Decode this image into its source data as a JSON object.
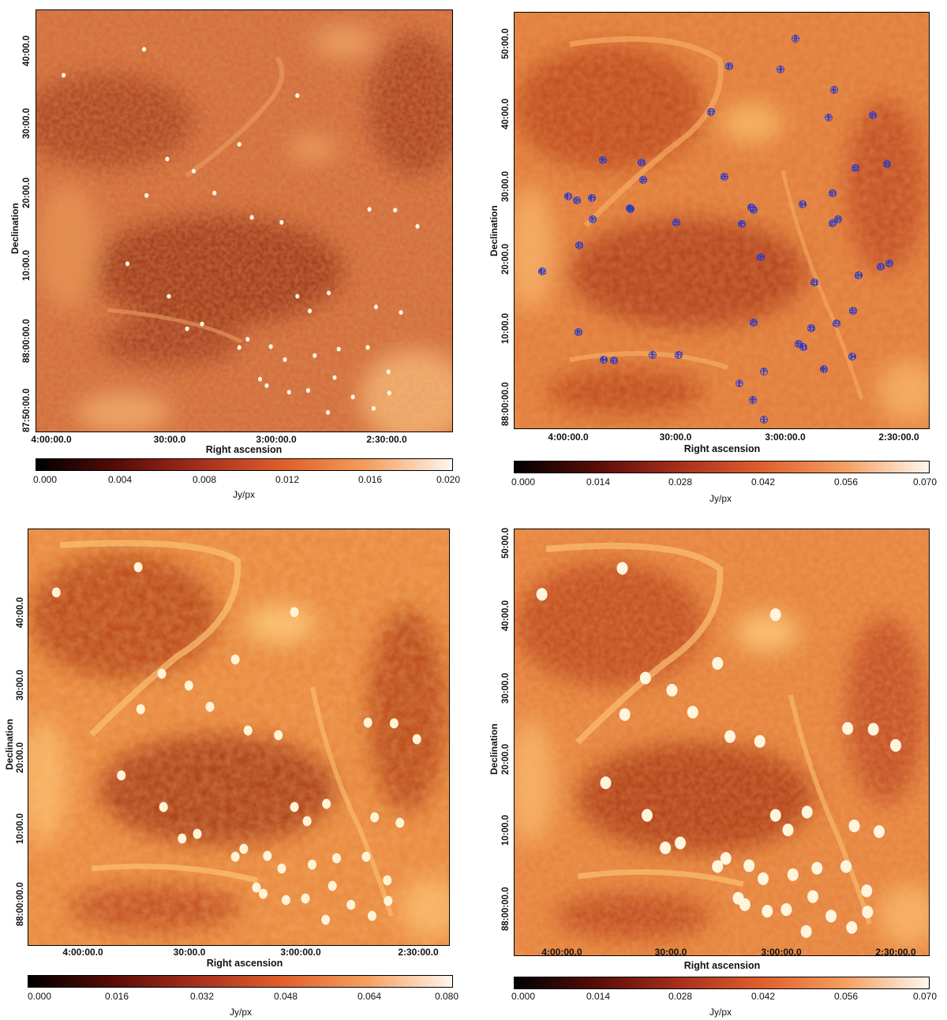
{
  "colorbar_unit": "Jy/px",
  "axis_labels": {
    "x": "Right ascension",
    "y": "Declination"
  },
  "colormap": {
    "stops": [
      "#000000",
      "#5a0c08",
      "#a8301c",
      "#e0602c",
      "#f5a060",
      "#fff6ee"
    ]
  },
  "panels": [
    {
      "id": "top-left",
      "yticks": [
        "40:00.0",
        "30:00.0",
        "20:00.0",
        "10:00.0",
        "88:00:00.0",
        "87:50:00.0"
      ],
      "xticks": [
        "4:00:00.0",
        "30:00.0",
        "3:00:00.0",
        "2:30:00.0"
      ],
      "cbar_ticks": [
        "0.000",
        "0.004",
        "0.008",
        "0.012",
        "0.016",
        "0.020"
      ]
    },
    {
      "id": "top-right",
      "yticks": [
        "50:00.0",
        "40:00.0",
        "30:00.0",
        "20:00.0",
        "10:00.0",
        "88:00:00.0"
      ],
      "xticks": [
        "4:00:00.0",
        "30:00.0",
        "3:00:00.0",
        "2:30:00.0"
      ],
      "cbar_ticks": [
        "0.000",
        "0.014",
        "0.028",
        "0.042",
        "0.056",
        "0.070"
      ],
      "source_labels": [
        "43",
        "16",
        "42",
        "38",
        "33",
        "44",
        "63",
        "36",
        "49",
        "39",
        "30",
        "40",
        "5",
        "61",
        "18",
        "37",
        "20",
        "17",
        "35",
        "26",
        "47",
        "45",
        "28",
        "29",
        "7",
        "62",
        "1",
        "2",
        "8",
        "3",
        "4",
        "6",
        "9",
        "10",
        "11",
        "12",
        "13",
        "14",
        "15",
        "19",
        "21",
        "22",
        "23",
        "24",
        "25",
        "27",
        "31",
        "32",
        "34",
        "41",
        "46"
      ]
    },
    {
      "id": "bottom-left",
      "yticks": [
        "40:00.0",
        "30:00.0",
        "20:00.0",
        "10:00.0",
        "88:00:00.0"
      ],
      "xticks": [
        "4:00:00.0",
        "30:00.0",
        "3:00:00.0",
        "2:30:00.0"
      ],
      "cbar_ticks": [
        "0.000",
        "0.016",
        "0.032",
        "0.048",
        "0.064",
        "0.080"
      ]
    },
    {
      "id": "bottom-right",
      "yticks": [
        "50:00.0",
        "40:00.0",
        "30:00.0",
        "20:00.0",
        "10:00.0",
        "88:00:00.0"
      ],
      "xticks": [
        "4:00:00.0",
        "30:00.0",
        "3:00:00.0",
        "2:30:00.0"
      ],
      "cbar_ticks": [
        "0.000",
        "0.014",
        "0.028",
        "0.042",
        "0.056",
        "0.070"
      ]
    }
  ]
}
